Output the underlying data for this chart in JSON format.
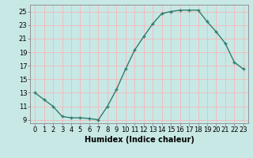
{
  "x": [
    0,
    1,
    2,
    3,
    4,
    5,
    6,
    7,
    8,
    9,
    10,
    11,
    12,
    13,
    14,
    15,
    16,
    17,
    18,
    19,
    20,
    21,
    22,
    23
  ],
  "y": [
    13,
    12,
    11,
    9.5,
    9.3,
    9.3,
    9.2,
    9.0,
    11.0,
    13.5,
    16.5,
    19.3,
    21.3,
    23.2,
    24.7,
    25.0,
    25.2,
    25.2,
    25.2,
    23.5,
    22.0,
    20.3,
    17.5,
    16.5
  ],
  "line_color": "#2e7d6e",
  "marker": "+",
  "bg_color": "#c8e8e5",
  "grid_color": "#f5b8b8",
  "xlabel": "Humidex (Indice chaleur)",
  "ylim": [
    8.5,
    26.0
  ],
  "xlim": [
    -0.5,
    23.5
  ],
  "yticks": [
    9,
    11,
    13,
    15,
    17,
    19,
    21,
    23,
    25
  ],
  "xticks": [
    0,
    1,
    2,
    3,
    4,
    5,
    6,
    7,
    8,
    9,
    10,
    11,
    12,
    13,
    14,
    15,
    16,
    17,
    18,
    19,
    20,
    21,
    22,
    23
  ],
  "tick_fontsize": 6.0,
  "xlabel_fontsize": 7.0,
  "line_width": 1.0,
  "marker_size": 3.5
}
